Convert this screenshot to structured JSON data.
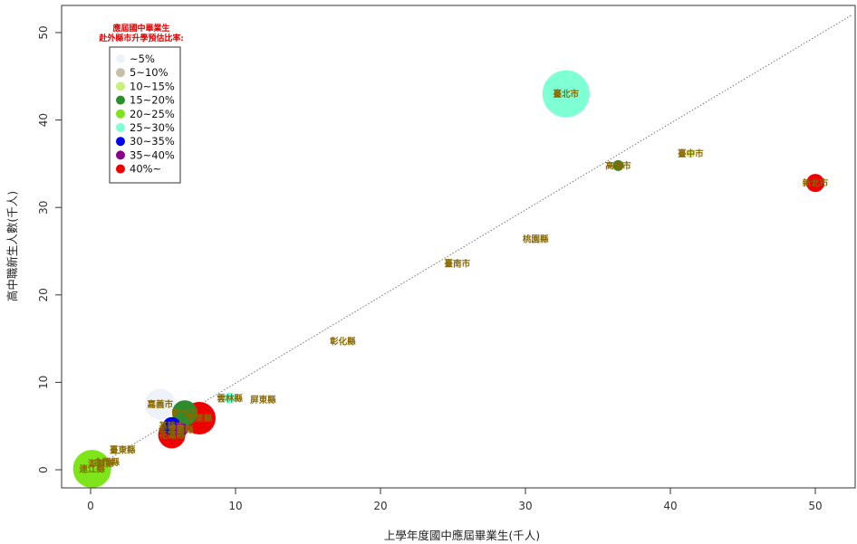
{
  "chart_data": {
    "type": "scatter",
    "xlabel": "上學年度國中應屆畢業生(千人)",
    "ylabel": "高中職新生人數(千人)",
    "xlim": [
      -2,
      53
    ],
    "ylim": [
      -2,
      53
    ],
    "x_ticks": [
      0,
      10,
      20,
      30,
      40,
      50
    ],
    "y_ticks": [
      0,
      10,
      20,
      30,
      40,
      50
    ],
    "grid": false,
    "reference_line": {
      "style": "dotted",
      "from": [
        0,
        0
      ],
      "to": [
        52.5,
        52
      ]
    },
    "legend": {
      "position": "top-left",
      "title_lines": [
        "應屆國中畢業生",
        "赴外縣市升學預估比率:"
      ],
      "entries": [
        {
          "label": "~5%",
          "color": "#eef3fb"
        },
        {
          "label": "5~10%",
          "color": "#c8bfa8"
        },
        {
          "label": "10~15%",
          "color": "#c8f07a"
        },
        {
          "label": "15~20%",
          "color": "#2e8b2e"
        },
        {
          "label": "20~25%",
          "color": "#7ee51a"
        },
        {
          "label": "25~30%",
          "color": "#7fffd4"
        },
        {
          "label": "30~35%",
          "color": "#0000ee"
        },
        {
          "label": "35~40%",
          "color": "#8b008b"
        },
        {
          "label": "40%~",
          "color": "#ee0000"
        }
      ]
    },
    "points": [
      {
        "name": "臺北市",
        "x": 32.8,
        "y": 43.0,
        "color": "#7fffd4",
        "r": 26
      },
      {
        "name": "新北市",
        "x": 50.0,
        "y": 32.8,
        "color": "#ee0000",
        "r": 10
      },
      {
        "name": "臺中市",
        "x": 41.4,
        "y": 36.2,
        "color": "#c8f07a",
        "r": 5
      },
      {
        "name": "高雄市",
        "x": 36.4,
        "y": 34.8,
        "color": "#2e8b2e",
        "r": 6
      },
      {
        "name": "桃園縣",
        "x": 30.7,
        "y": 26.4,
        "color": "#c8bfa8",
        "r": 0
      },
      {
        "name": "臺南市",
        "x": 25.3,
        "y": 23.6,
        "color": "#c8bfa8",
        "r": 0
      },
      {
        "name": "彰化縣",
        "x": 17.4,
        "y": 14.7,
        "color": "#c8bfa8",
        "r": 0
      },
      {
        "name": "雲林縣",
        "x": 9.6,
        "y": 8.2,
        "color": "#7fffd4",
        "r": 6
      },
      {
        "name": "屏東縣",
        "x": 11.9,
        "y": 8.0,
        "color": "#c8bfa8",
        "r": 0
      },
      {
        "name": "嘉義市",
        "x": 4.8,
        "y": 7.5,
        "color": "#eef3fb",
        "r": 17
      },
      {
        "name": "新竹市",
        "x": 6.5,
        "y": 6.5,
        "color": "#2e8b2e",
        "r": 14
      },
      {
        "name": "苗栗縣",
        "x": 7.5,
        "y": 5.9,
        "color": "#ee0000",
        "r": 18
      },
      {
        "name": "基隆市",
        "x": 5.6,
        "y": 5.0,
        "color": "#0000ee",
        "r": 10
      },
      {
        "name": "宜蘭縣",
        "x": 6.2,
        "y": 4.6,
        "color": "#8b008b",
        "r": 8
      },
      {
        "name": "花蓮縣",
        "x": 5.6,
        "y": 4.0,
        "color": "#ee0000",
        "r": 15
      },
      {
        "name": "臺東縣",
        "x": 2.2,
        "y": 2.3,
        "color": "#c8bfa8",
        "r": 0
      },
      {
        "name": "金門縣",
        "x": 1.1,
        "y": 0.9,
        "color": "#c8bfa8",
        "r": 0
      },
      {
        "name": "澎湖縣",
        "x": 0.7,
        "y": 0.7,
        "color": "#c8bfa8",
        "r": 0
      },
      {
        "name": "連江縣",
        "x": 0.1,
        "y": 0.1,
        "color": "#7ee51a",
        "r": 21
      }
    ]
  }
}
